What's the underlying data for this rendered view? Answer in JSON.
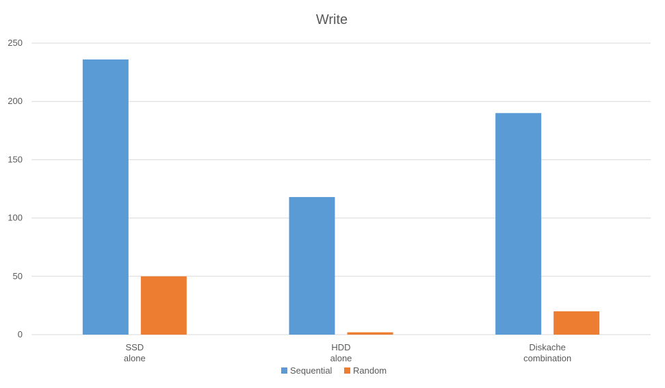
{
  "chart_data": {
    "type": "bar",
    "title": "Write",
    "categories": [
      [
        "SSD",
        "alone"
      ],
      [
        "HDD",
        "alone"
      ],
      [
        "Diskache",
        "combination"
      ]
    ],
    "series": [
      {
        "name": "Sequential",
        "values": [
          236,
          118,
          190
        ],
        "color": "#5b9bd5"
      },
      {
        "name": "Random",
        "values": [
          50,
          2,
          20
        ],
        "color": "#ed7d31"
      }
    ],
    "ylim": [
      0,
      250
    ],
    "yticks": [
      0,
      50,
      100,
      150,
      200,
      250
    ],
    "grid": true,
    "legend": "bottom"
  }
}
